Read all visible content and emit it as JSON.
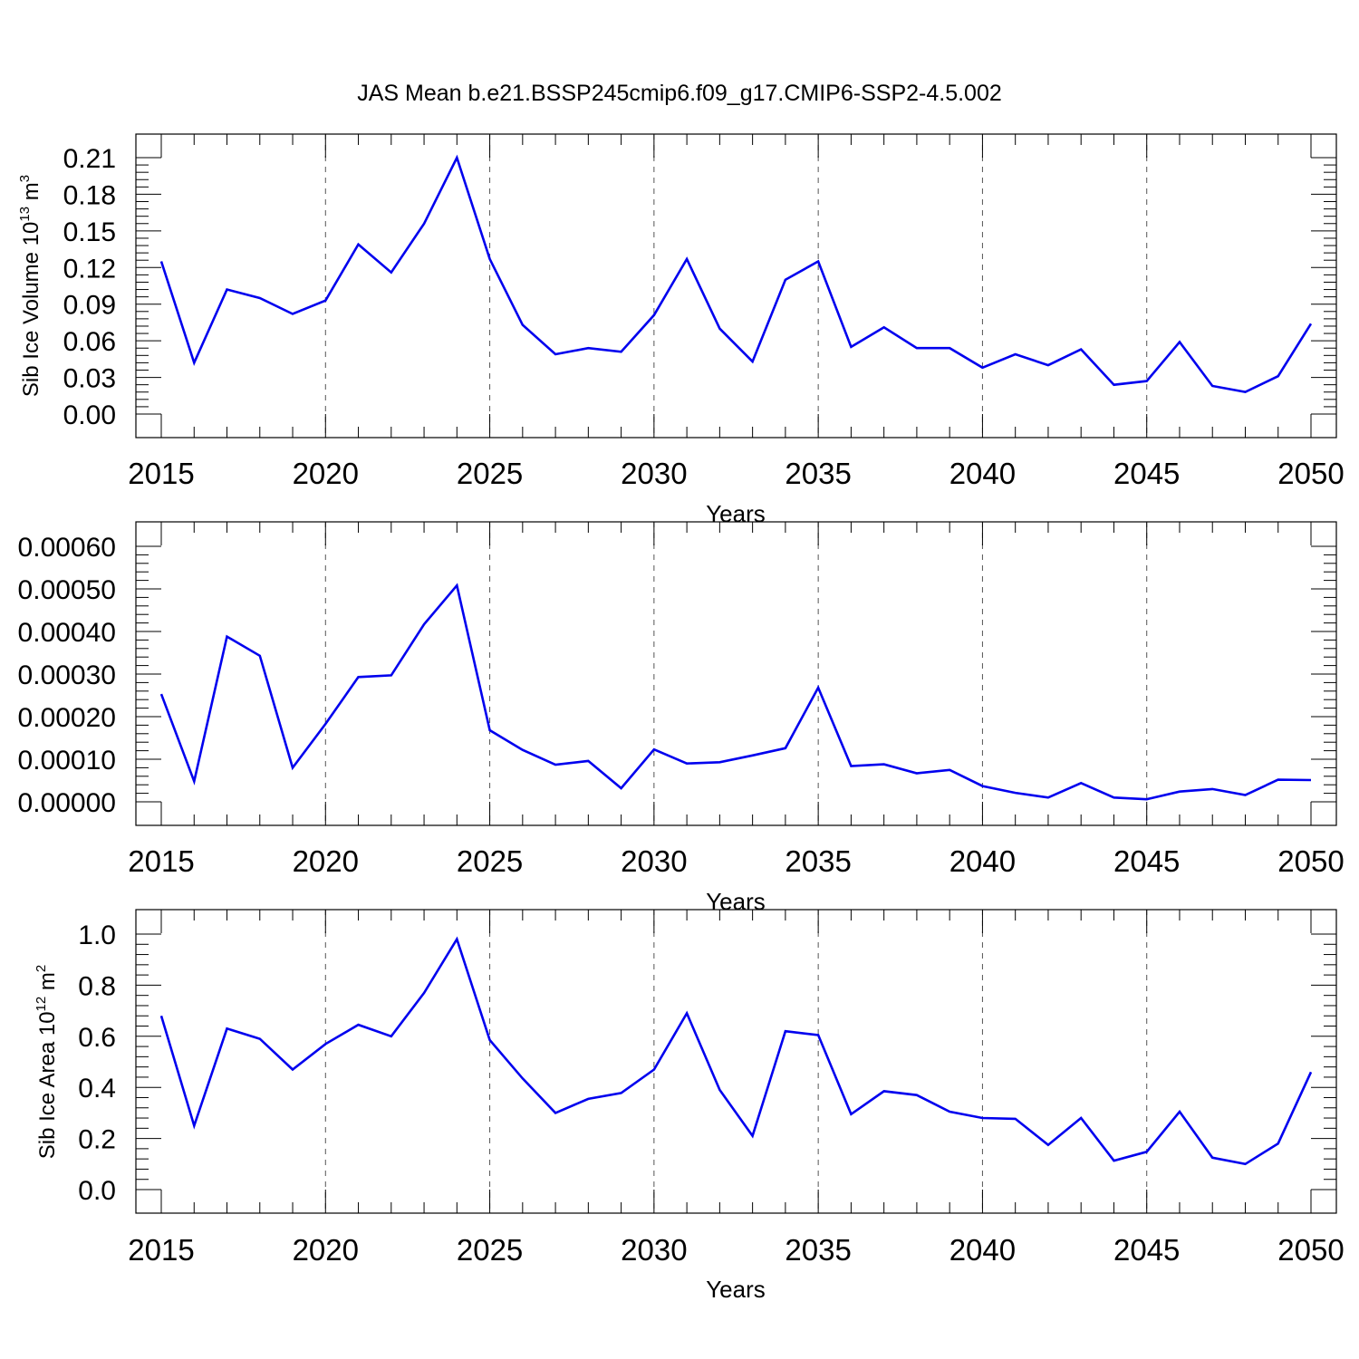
{
  "title": "JAS Mean b.e21.BSSP245cmip6.f09_g17.CMIP6-SSP2-4.5.002",
  "chart_data": [
    {
      "type": "line",
      "x": [
        2015,
        2016,
        2017,
        2018,
        2019,
        2020,
        2021,
        2022,
        2023,
        2024,
        2025,
        2026,
        2027,
        2028,
        2029,
        2030,
        2031,
        2032,
        2033,
        2034,
        2035,
        2036,
        2037,
        2038,
        2039,
        2040,
        2041,
        2042,
        2043,
        2044,
        2045,
        2046,
        2047,
        2048,
        2049,
        2050
      ],
      "values": [
        0.125,
        0.042,
        0.102,
        0.095,
        0.082,
        0.093,
        0.139,
        0.116,
        0.156,
        0.21,
        0.127,
        0.073,
        0.049,
        0.054,
        0.051,
        0.081,
        0.127,
        0.07,
        0.043,
        0.11,
        0.125,
        0.055,
        0.071,
        0.054,
        0.054,
        0.038,
        0.049,
        0.04,
        0.053,
        0.024,
        0.027,
        0.059,
        0.023,
        0.018,
        0.031,
        0.074
      ],
      "xlabel": "Years",
      "ylabel": "Sib Ice Volume 10",
      "ylabel_sup": "13",
      "ylabel_unit": "m",
      "ylabel_unit_sup": "3",
      "xlim": [
        2015,
        2050
      ],
      "ylim": [
        0,
        0.21
      ],
      "xticks": [
        "2015",
        "2020",
        "2025",
        "2030",
        "2035",
        "2040",
        "2045",
        "2050"
      ],
      "yticks": [
        "0.00",
        "0.03",
        "0.06",
        "0.09",
        "0.12",
        "0.15",
        "0.18",
        "0.21"
      ],
      "grid": "dashed vertical at major x ticks",
      "color": "#0000ee"
    },
    {
      "type": "line",
      "x": [
        2015,
        2016,
        2017,
        2018,
        2019,
        2020,
        2021,
        2022,
        2023,
        2024,
        2025,
        2026,
        2027,
        2028,
        2029,
        2030,
        2031,
        2032,
        2033,
        2034,
        2035,
        2036,
        2037,
        2038,
        2039,
        2040,
        2041,
        2042,
        2043,
        2044,
        2045,
        2046,
        2047,
        2048,
        2049,
        2050
      ],
      "values": [
        0.000253,
        4.8e-05,
        0.000388,
        0.000343,
        8e-05,
        0.000183,
        0.000293,
        0.000297,
        0.000417,
        0.000508,
        0.000168,
        0.000122,
        8.7e-05,
        9.6e-05,
        3.2e-05,
        0.000123,
        9e-05,
        9.3e-05,
        0.000109,
        0.000126,
        0.000268,
        8.4e-05,
        8.8e-05,
        6.7e-05,
        7.5e-05,
        3.7e-05,
        2.1e-05,
        1e-05,
        4.4e-05,
        1e-05,
        6e-06,
        2.4e-05,
        3e-05,
        1.6e-05,
        5.2e-05,
        5.1e-05
      ],
      "xlabel": "Years",
      "ylabel": "",
      "xlim": [
        2015,
        2050
      ],
      "ylim": [
        0,
        0.0006
      ],
      "xticks": [
        "2015",
        "2020",
        "2025",
        "2030",
        "2035",
        "2040",
        "2045",
        "2050"
      ],
      "yticks": [
        "0.00000",
        "0.00010",
        "0.00020",
        "0.00030",
        "0.00040",
        "0.00050",
        "0.00060"
      ],
      "grid": "dashed vertical at major x ticks",
      "color": "#0000ee"
    },
    {
      "type": "line",
      "x": [
        2015,
        2016,
        2017,
        2018,
        2019,
        2020,
        2021,
        2022,
        2023,
        2024,
        2025,
        2026,
        2027,
        2028,
        2029,
        2030,
        2031,
        2032,
        2033,
        2034,
        2035,
        2036,
        2037,
        2038,
        2039,
        2040,
        2041,
        2042,
        2043,
        2044,
        2045,
        2046,
        2047,
        2048,
        2049,
        2050
      ],
      "values": [
        0.68,
        0.25,
        0.63,
        0.59,
        0.47,
        0.57,
        0.645,
        0.6,
        0.77,
        0.98,
        0.585,
        0.435,
        0.3,
        0.355,
        0.378,
        0.47,
        0.69,
        0.39,
        0.21,
        0.62,
        0.605,
        0.295,
        0.385,
        0.37,
        0.305,
        0.28,
        0.277,
        0.175,
        0.28,
        0.113,
        0.148,
        0.305,
        0.125,
        0.1,
        0.18,
        0.46
      ],
      "xlabel": "Years",
      "ylabel": "Sib Ice Area 10",
      "ylabel_sup": "12",
      "ylabel_unit": "m",
      "ylabel_unit_sup": "2",
      "xlim": [
        2015,
        2050
      ],
      "ylim": [
        0,
        1.0
      ],
      "xticks": [
        "2015",
        "2020",
        "2025",
        "2030",
        "2035",
        "2040",
        "2045",
        "2050"
      ],
      "yticks": [
        "0.0",
        "0.2",
        "0.4",
        "0.6",
        "0.8",
        "1.0"
      ],
      "grid": "dashed vertical at major x ticks",
      "color": "#0000ee"
    }
  ]
}
